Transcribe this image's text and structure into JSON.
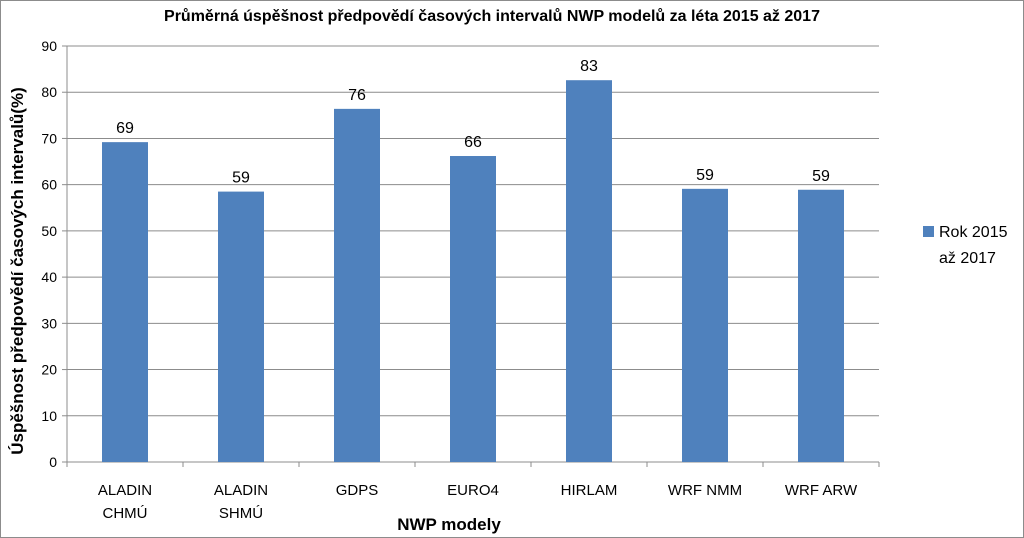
{
  "chart_data": {
    "type": "bar",
    "title": "Průměrná úspěšnost předpovědí časových intervalů NWP modelů za léta 2015 až 2017",
    "xlabel": "NWP modely",
    "ylabel": "Úspěšnost předpovědí časových intervalů(%)",
    "categories": [
      [
        "ALADIN",
        "CHMÚ"
      ],
      [
        "ALADIN",
        "SHMÚ"
      ],
      [
        "GDPS"
      ],
      [
        "EURO4"
      ],
      [
        "HIRLAM"
      ],
      [
        "WRF NMM"
      ],
      [
        "WRF ARW"
      ]
    ],
    "series": [
      {
        "name": "Rok 2015 až 2017",
        "legend_lines": [
          "Rok 2015",
          "až 2017"
        ],
        "values": [
          69.2,
          58.5,
          76.4,
          66.2,
          82.6,
          59.1,
          58.9
        ],
        "labels": [
          "69",
          "59",
          "76",
          "66",
          "83",
          "59",
          "59"
        ],
        "color": "#4f81bd"
      }
    ],
    "ylim": [
      0,
      90
    ],
    "yticks": [
      0,
      10,
      20,
      30,
      40,
      50,
      60,
      70,
      80,
      90
    ],
    "grid": true,
    "legend_position": "right"
  }
}
